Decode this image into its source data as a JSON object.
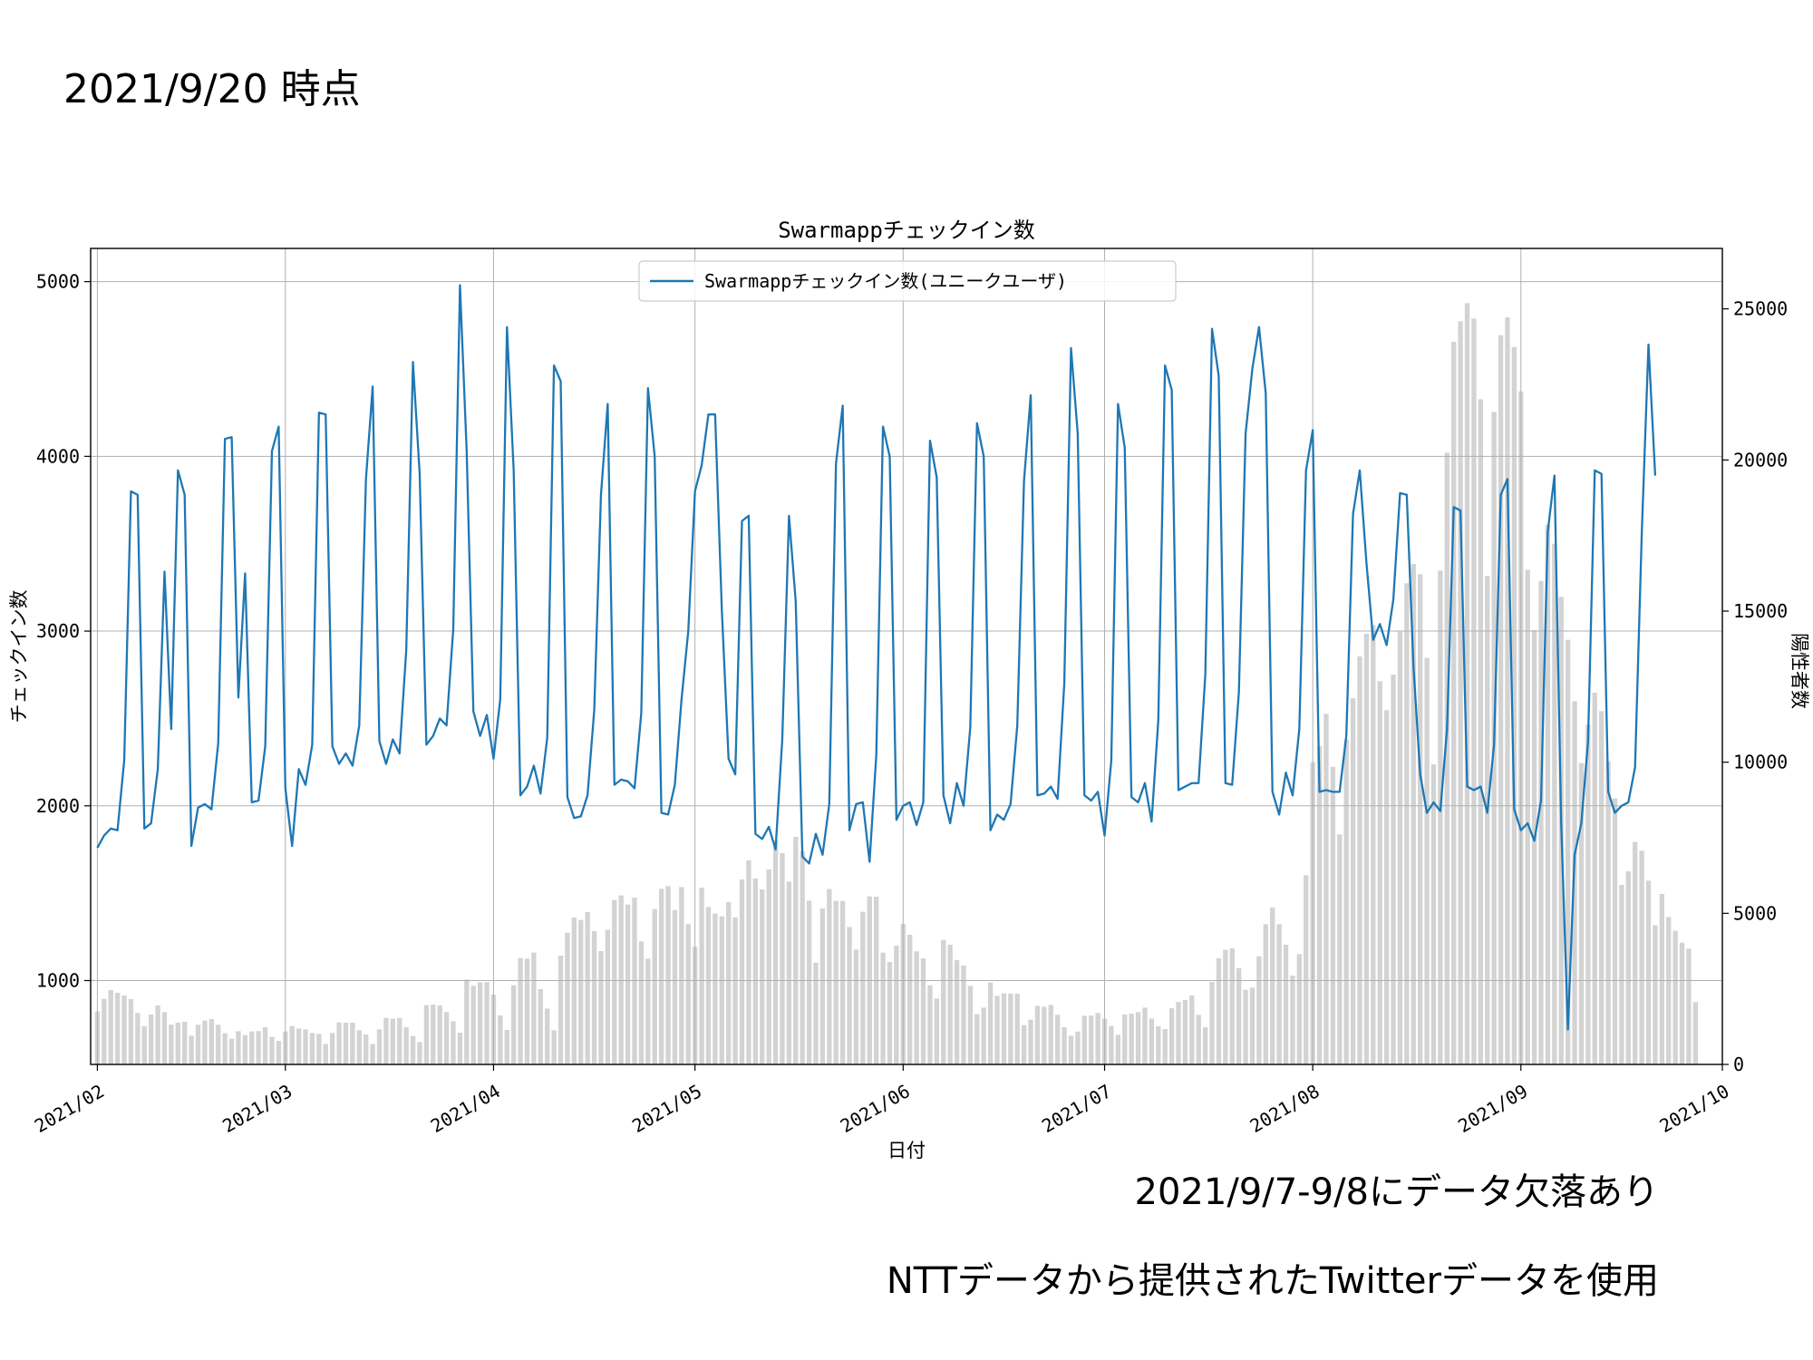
{
  "header": {
    "title": "2021/9/20 時点"
  },
  "notes": {
    "gap": "2021/9/7-9/8にデータ欠落あり",
    "source": "NTTデータから提供されたTwitterデータを使用"
  },
  "chart_data": {
    "type": "line+bar",
    "title": "Swarmappチェックイン数",
    "xlabel": "日付",
    "ylabel_left": "チェックイン数",
    "ylabel_right": "陽性者数",
    "x_start": "2021-02-01",
    "x_end": "2021-09-20",
    "xlim": [
      "2021-01-31",
      "2021-10-01"
    ],
    "x_ticks": [
      "2021/02",
      "2021/03",
      "2021/04",
      "2021/05",
      "2021/06",
      "2021/07",
      "2021/08",
      "2021/09",
      "2021/10"
    ],
    "y_left_ticks": [
      1000,
      2000,
      3000,
      4000,
      5000
    ],
    "y_right_ticks": [
      0,
      5000,
      10000,
      15000,
      20000,
      25000
    ],
    "ylim_left": [
      520,
      5190
    ],
    "ylim_right": [
      0,
      27000
    ],
    "legend": {
      "label": "Swarmappチェックイン数(ユニークユーザ)",
      "position": "upper-center"
    },
    "grid": true,
    "colors": {
      "line": "#1f77b4",
      "bar": "#d3d3d3"
    },
    "checkins": [
      1760,
      1830,
      1870,
      1860,
      2260,
      3800,
      3780,
      1870,
      1900,
      2210,
      3340,
      2440,
      3920,
      3780,
      1770,
      1990,
      2010,
      1980,
      2360,
      4100,
      4110,
      2620,
      3330,
      2020,
      2030,
      2340,
      4030,
      4170,
      2100,
      1770,
      2210,
      2120,
      2350,
      4250,
      4240,
      2340,
      2240,
      2300,
      2230,
      2460,
      3870,
      4400,
      2370,
      2240,
      2380,
      2300,
      2890,
      4540,
      3900,
      2350,
      2400,
      2500,
      2460,
      3010,
      4980,
      4030,
      2540,
      2400,
      2520,
      2270,
      2610,
      4740,
      3920,
      2060,
      2110,
      2230,
      2070,
      2390,
      4520,
      4430,
      2050,
      1930,
      1940,
      2060,
      2550,
      3780,
      4300,
      2120,
      2150,
      2140,
      2100,
      2530,
      4390,
      4000,
      1960,
      1950,
      2120,
      2610,
      3000,
      3800,
      3950,
      4240,
      4240,
      3120,
      2270,
      2180,
      3630,
      3660,
      1840,
      1810,
      1880,
      1750,
      2380,
      3660,
      3170,
      1710,
      1670,
      1840,
      1720,
      2010,
      3960,
      4290,
      1860,
      2010,
      2020,
      1680,
      2290,
      4170,
      4000,
      1920,
      2000,
      2020,
      1890,
      2020,
      4090,
      3880,
      2060,
      1900,
      2130,
      2000,
      2450,
      4190,
      4000,
      1860,
      1950,
      1920,
      2010,
      2460,
      3860,
      4350,
      2060,
      2070,
      2110,
      2040,
      2700,
      4620,
      4130,
      2060,
      2030,
      2080,
      1830,
      2260,
      4300,
      4050,
      2050,
      2020,
      2130,
      1910,
      2490,
      4520,
      4380,
      2090,
      2110,
      2130,
      2130,
      2750,
      4730,
      4460,
      2130,
      2120,
      2650,
      4130,
      4500,
      4740,
      4360,
      2080,
      1950,
      2190,
      2060,
      2440,
      3920,
      4150,
      2080,
      2090,
      2080,
      2080,
      2400,
      3670,
      3920,
      3390,
      2950,
      3040,
      2920,
      3180,
      3790,
      3780,
      2800,
      2180,
      1960,
      2020,
      1970,
      2440,
      3710,
      3690,
      2110,
      2090,
      2110,
      1960,
      2350,
      3780,
      3870,
      1980,
      1860,
      1900,
      1800,
      2030,
      3570,
      3890,
      1900,
      720,
      1720,
      1900,
      2370,
      3920,
      3900,
      2080,
      1960,
      2000,
      2020,
      2220,
      3560,
      4640,
      3890
    ],
    "positives": [
      1750,
      2170,
      2460,
      2370,
      2280,
      2160,
      1700,
      1260,
      1650,
      1950,
      1730,
      1320,
      1380,
      1410,
      950,
      1310,
      1450,
      1500,
      1310,
      1030,
      850,
      1100,
      970,
      1090,
      1100,
      1230,
      910,
      780,
      1090,
      1270,
      1190,
      1160,
      1040,
      1010,
      680,
      1040,
      1390,
      1380,
      1380,
      1130,
      990,
      680,
      1160,
      1540,
      1510,
      1540,
      1230,
      940,
      740,
      1960,
      1980,
      1950,
      1730,
      1430,
      1050,
      2810,
      2600,
      2720,
      2720,
      2310,
      1620,
      1140,
      2620,
      3520,
      3500,
      3700,
      2490,
      1850,
      1130,
      3600,
      4360,
      4860,
      4780,
      5040,
      4410,
      3750,
      4460,
      5440,
      5590,
      5290,
      5520,
      4070,
      3500,
      5140,
      5810,
      5900,
      5110,
      5870,
      4640,
      3890,
      5850,
      5210,
      4990,
      4900,
      5370,
      4860,
      6120,
      6750,
      6150,
      5790,
      6450,
      7410,
      6990,
      6050,
      7530,
      7060,
      5420,
      3370,
      5160,
      5800,
      5410,
      5410,
      4550,
      3800,
      5050,
      5560,
      5550,
      3700,
      3390,
      3930,
      4650,
      4290,
      3740,
      3510,
      2620,
      2180,
      4120,
      3960,
      3450,
      3270,
      2600,
      1660,
      1880,
      2710,
      2270,
      2350,
      2340,
      2340,
      1300,
      1480,
      1940,
      1910,
      1970,
      1640,
      1230,
      950,
      1090,
      1610,
      1620,
      1700,
      1510,
      1270,
      980,
      1650,
      1680,
      1730,
      1880,
      1520,
      1260,
      1170,
      1860,
      2070,
      2130,
      2280,
      1640,
      1230,
      2730,
      3510,
      3790,
      3840,
      3190,
      2470,
      2540,
      3580,
      4640,
      5190,
      4640,
      3960,
      2940,
      3650,
      6260,
      10000,
      10530,
      11600,
      9850,
      7610,
      10750,
      12120,
      13500,
      14250,
      14540,
      12680,
      11720,
      12900,
      14320,
      15920,
      16560,
      16220,
      13450,
      9930,
      16340,
      20240,
      23910,
      24590,
      25190,
      24680,
      22010,
      16160,
      21590,
      24130,
      24720,
      23740,
      22270,
      16370,
      14370,
      16000,
      17860,
      17230,
      15470,
      14050,
      12020,
      9970,
      11240,
      12300,
      11690,
      10030,
      8800,
      5940,
      6390,
      7360,
      7070,
      6080,
      4610,
      5640,
      4880,
      4420,
      4030,
      3830,
      2060
    ],
    "gap_dates": [
      "2021-09-07",
      "2021-09-08"
    ]
  }
}
